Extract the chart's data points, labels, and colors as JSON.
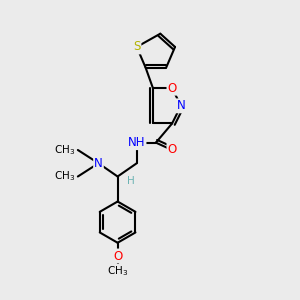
{
  "bg_color": "#ebebeb",
  "atom_colors": {
    "C": "#000000",
    "H": "#6ab3b3",
    "N": "#0000ff",
    "O": "#ff0000",
    "S": "#b3b300"
  },
  "bond_color": "#000000",
  "font_size": 8.5,
  "fig_size": [
    3.0,
    3.0
  ],
  "dpi": 100
}
